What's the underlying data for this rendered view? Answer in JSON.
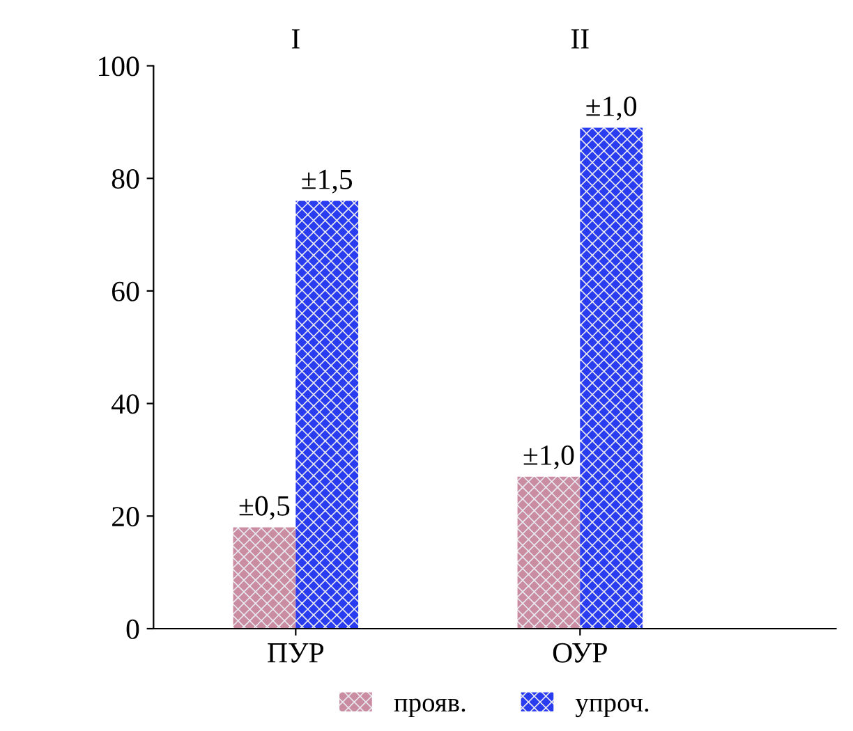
{
  "chart_data": {
    "type": "bar",
    "categories": [
      "ПУР",
      "ОУР"
    ],
    "series": [
      {
        "name": "прояв.",
        "color": "#c98ca0",
        "values": [
          18,
          27
        ]
      },
      {
        "name": "упроч.",
        "color": "#2a3cf0",
        "values": [
          76,
          89
        ]
      }
    ],
    "ylim": [
      0,
      100
    ],
    "yticks": [
      0,
      20,
      40,
      60,
      80,
      100
    ],
    "grid": false,
    "legend": "bottom",
    "annotations": [
      "I",
      "II",
      {
        "text": "±0,5",
        "x": "ПУР",
        "y": 18
      },
      {
        "text": "±1,5",
        "x": "ПУР",
        "y": 76
      },
      {
        "text": "±1,0",
        "x": "ОУР",
        "y": 27
      },
      {
        "text": "±1,0",
        "x": "ОУР",
        "y": 89
      }
    ]
  }
}
